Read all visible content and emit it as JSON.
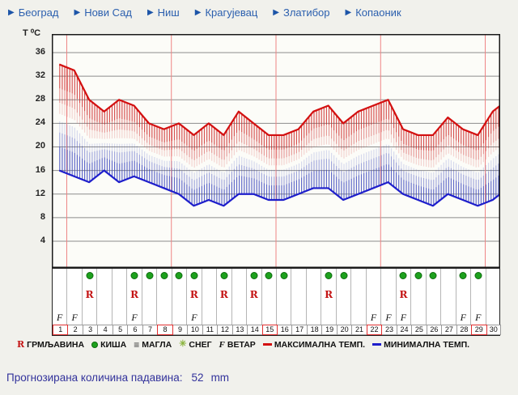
{
  "nav": {
    "items": [
      {
        "label": "Београд",
        "slug": "beograd"
      },
      {
        "label": "Нови Сад",
        "slug": "novi-sad"
      },
      {
        "label": "Ниш",
        "slug": "nis"
      },
      {
        "label": "Крагујевац",
        "slug": "kragujevac"
      },
      {
        "label": "Златибор",
        "slug": "zlatibor"
      },
      {
        "label": "Копаоник",
        "slug": "kopaonik"
      }
    ]
  },
  "chart_data": {
    "type": "line",
    "ylabel": "T ⁰C",
    "days": [
      1,
      2,
      3,
      4,
      5,
      6,
      7,
      8,
      9,
      10,
      11,
      12,
      13,
      14,
      15,
      16,
      17,
      18,
      19,
      20,
      21,
      22,
      23,
      24,
      25,
      26,
      27,
      28,
      29,
      30
    ],
    "series": [
      {
        "name": "МАКСИМАЛНА ТЕМП.",
        "color": "#d31010",
        "values": [
          34,
          33,
          28,
          26,
          28,
          27,
          24,
          23,
          24,
          22,
          24,
          22,
          26,
          24,
          22,
          22,
          23,
          26,
          27,
          24,
          26,
          27,
          28,
          23,
          22,
          22,
          25,
          23,
          22,
          26
        ]
      },
      {
        "name": "МИНИМАЛНА ТЕМП.",
        "color": "#1e1ecb",
        "values": [
          16,
          15,
          14,
          16,
          14,
          15,
          14,
          13,
          12,
          10,
          11,
          10,
          12,
          12,
          11,
          11,
          12,
          13,
          13,
          11,
          12,
          13,
          14,
          12,
          11,
          10,
          12,
          11,
          10,
          11
        ]
      }
    ],
    "yticks": [
      36,
      32,
      28,
      24,
      20,
      16,
      12,
      8,
      4
    ],
    "ylim": [
      0,
      39
    ],
    "grid": true,
    "week_lines_after_days": [
      1,
      8,
      15,
      22,
      29
    ],
    "markers": {
      "rain_days": [
        3,
        6,
        7,
        8,
        9,
        10,
        12,
        14,
        15,
        16,
        19,
        20,
        24,
        25,
        26,
        28,
        29
      ],
      "thunder_days": [
        3,
        6,
        10,
        12,
        14,
        19,
        24
      ],
      "fog_days": [],
      "snow_days": [],
      "wind_days": [
        1,
        2,
        6,
        10,
        22,
        23,
        24,
        28,
        29
      ],
      "boxed_days": [
        1,
        8,
        15,
        22,
        29
      ]
    },
    "day_labels": [
      "1",
      "2",
      "3",
      "4",
      "5",
      "6",
      "7",
      "8",
      "9",
      "10",
      "11",
      "12",
      "13",
      "14",
      "15",
      "16",
      "17",
      "18",
      "19",
      "20",
      "21",
      "22",
      "23",
      "24",
      "25",
      "26",
      "27",
      "28",
      "29",
      "30"
    ]
  },
  "legend": {
    "items": [
      {
        "icon": "thunder-icon",
        "glyph": "R",
        "label": "ГРМЉАВИНА"
      },
      {
        "icon": "rain-icon",
        "glyph": "",
        "label": "КИША"
      },
      {
        "icon": "fog-icon",
        "glyph": "≡",
        "label": "МАГЛА"
      },
      {
        "icon": "snow-icon",
        "glyph": "✳",
        "label": "СНЕГ"
      },
      {
        "icon": "wind-icon",
        "glyph": "F",
        "label": "ВЕТАР"
      },
      {
        "icon": "max-temp-line-icon",
        "glyph": "",
        "label": "МАКСИМАЛНА ТЕМП."
      },
      {
        "icon": "min-temp-line-icon",
        "glyph": "",
        "label": "МИНИМАЛНА ТЕМП."
      }
    ]
  },
  "footer": {
    "label": "Прогнозирана количина падавина:",
    "value": "52",
    "unit": "mm"
  },
  "colors": {
    "max_temp": "#d31010",
    "min_temp": "#1e1ecb",
    "week_line": "#ee8484",
    "gridline": "#8c8c8c",
    "rain_dot": "#1da11d",
    "thunder": "#c41414",
    "nav_link": "#2b5fae",
    "footer_text": "#32329b",
    "panel_bg": "#f1f1ec",
    "plot_bg": "#fcfcf8"
  }
}
